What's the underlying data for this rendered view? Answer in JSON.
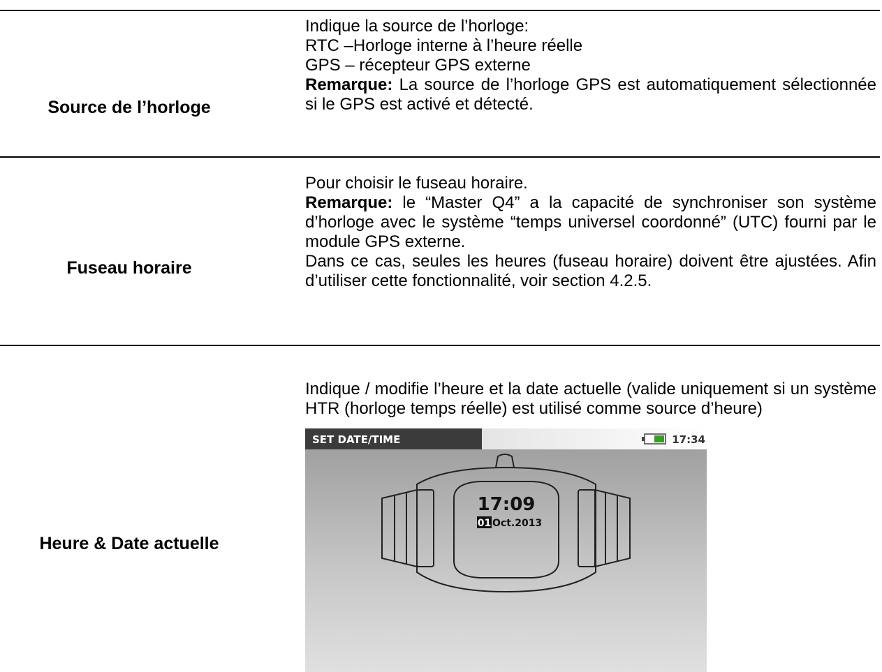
{
  "table": {
    "rows": [
      {
        "label": "Source de l’horloge",
        "paragraphs": [
          {
            "text": "Indique la source de l’horloge:"
          },
          {
            "text": "RTC –Horloge interne à l’heure réelle"
          },
          {
            "text": "GPS – récepteur GPS externe"
          },
          {
            "bold": "Remarque:",
            "text": "La source de l’horloge GPS est automatiquement sélectionnée si le GPS est activé et détecté."
          }
        ]
      },
      {
        "label": "Fuseau horaire",
        "paragraphs": [
          {
            "text": "Pour choisir le fuseau horaire."
          },
          {
            "bold": "Remarque:",
            "text": "le “Master Q4” a la capacité de synchroniser son système d’horloge avec le système “temps universel coordonné” (UTC) fourni par le module GPS externe."
          },
          {
            "text": "Dans ce cas, seules les heures (fuseau horaire) doivent être ajustées. Afin d’utiliser cette fonctionnalité, voir section 4.2.5."
          }
        ]
      },
      {
        "label": "Heure & Date actuelle",
        "paragraphs": [
          {
            "text": "Indique / modifie l’heure et la date actuelle (valide uniquement si un système HTR (horloge temps réelle) est utilisé comme source d’heure)"
          }
        ],
        "screen": {
          "header": "SET DATE/TIME",
          "clock": "17:34",
          "time": "17:09",
          "day": "01",
          "date": "Oct.2013"
        }
      }
    ]
  }
}
